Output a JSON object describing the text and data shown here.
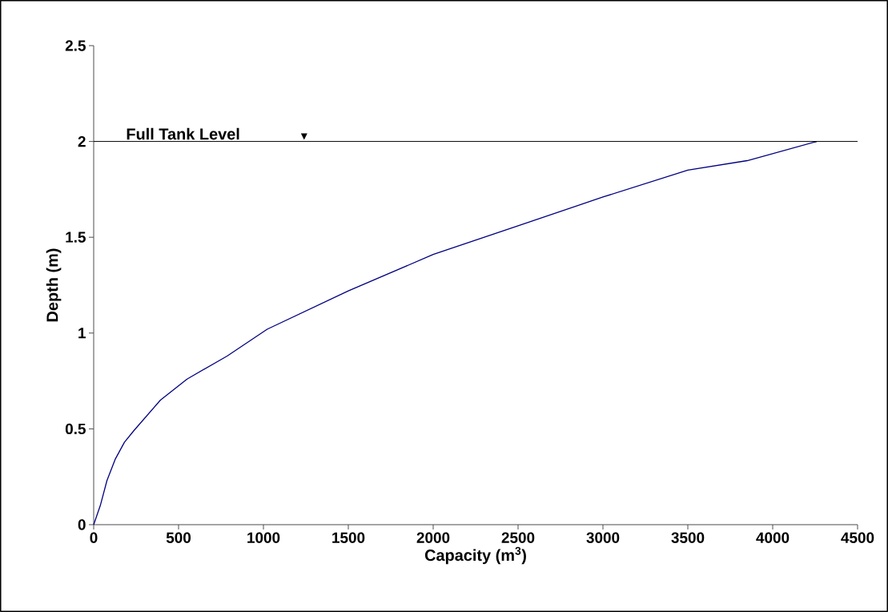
{
  "chart_data": {
    "type": "line",
    "xlabel": "Capacity (m$^{3}$)",
    "ylabel": "Depth (m)",
    "x": [
      0,
      39,
      78,
      126,
      181,
      236,
      393,
      550,
      786,
      1022,
      1500,
      2000,
      2500,
      3000,
      3500,
      3850,
      4260
    ],
    "series": [
      {
        "color": "#000080",
        "values": [
          0,
          0.1,
          0.23,
          0.34,
          0.43,
          0.49,
          0.65,
          0.76,
          0.88,
          1.02,
          1.22,
          1.41,
          1.56,
          1.71,
          1.85,
          1.9,
          2.0
        ]
      }
    ],
    "xlim": [
      0,
      4500
    ],
    "xticks": [
      0,
      500,
      1000,
      1500,
      2000,
      2500,
      3000,
      3500,
      4000,
      4500
    ],
    "ylim": [
      0,
      2.5
    ],
    "yticks": [
      0,
      0.5,
      1,
      1.5,
      2,
      2.5
    ],
    "ref_lines": [
      {
        "axis": "y",
        "value": 2,
        "label": "Full Tank Level",
        "color": "#000000"
      }
    ],
    "grid": false,
    "marker": "none",
    "line_style": "solid"
  }
}
